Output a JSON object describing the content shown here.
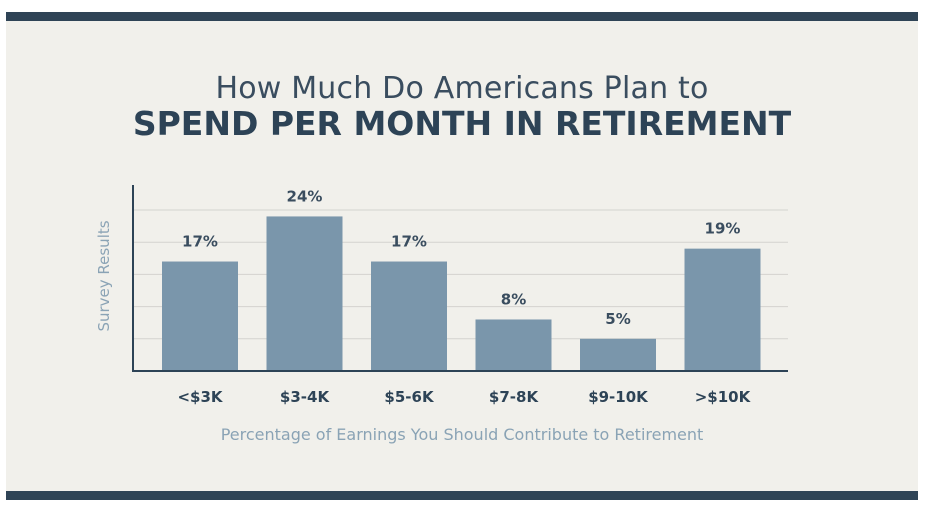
{
  "title_line1": "How Much Do Americans Plan to",
  "title_line2": "SPEND PER MONTH IN RETIREMENT",
  "chart_data": {
    "type": "bar",
    "categories": [
      "<$3K",
      "$3-4K",
      "$5-6K",
      "$7-8K",
      "$9-10K",
      ">$10K"
    ],
    "values": [
      17,
      24,
      17,
      8,
      5,
      19
    ],
    "data_labels": [
      "17%",
      "24%",
      "17%",
      "8%",
      "5%",
      "19%"
    ],
    "xlabel": "Percentage of Earnings You Should Contribute to Retirement",
    "ylabel": "Survey Results",
    "ylim": [
      0,
      30
    ],
    "grid": true,
    "bar_color": "#7a96ab",
    "axis_color": "#2d4356"
  },
  "colors": {
    "background": "#f1f0eb",
    "band": "#2f4456",
    "title": "#2d4356",
    "axis_label": "#8aa3b5"
  }
}
